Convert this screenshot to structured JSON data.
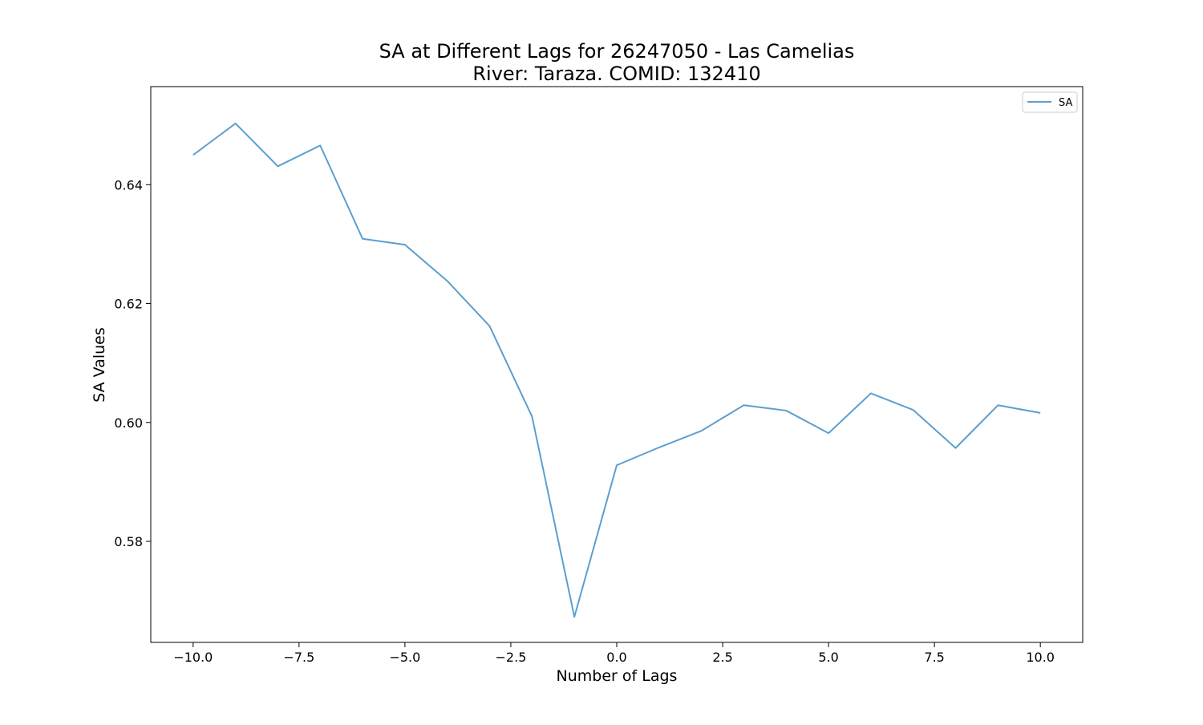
{
  "chart_data": {
    "type": "line",
    "title_lines": [
      "SA at Different Lags for 26247050 - Las Camelias",
      "River: Taraza. COMID: 132410"
    ],
    "xlabel": "Number of Lags",
    "ylabel": "SA Values",
    "xlim": [
      -11,
      11
    ],
    "ylim": [
      0.563,
      0.6565
    ],
    "x_ticks": [
      -10.0,
      -7.5,
      -5.0,
      -2.5,
      0.0,
      2.5,
      5.0,
      7.5,
      10.0
    ],
    "x_tick_labels": [
      "−10.0",
      "−7.5",
      "−5.0",
      "−2.5",
      "0.0",
      "2.5",
      "5.0",
      "7.5",
      "10.0"
    ],
    "y_ticks": [
      0.58,
      0.6,
      0.62,
      0.64
    ],
    "y_tick_labels": [
      "0.58",
      "0.60",
      "0.62",
      "0.64"
    ],
    "grid": false,
    "legend_position": "top-right",
    "line_color": "#5b9fcf",
    "series": [
      {
        "name": "SA",
        "x": [
          -10,
          -9,
          -8,
          -7,
          -6,
          -5,
          -4,
          -3,
          -2,
          -1,
          0,
          1,
          2,
          3,
          4,
          5,
          6,
          7,
          8,
          9,
          10
        ],
        "values": [
          0.645,
          0.6503,
          0.6431,
          0.6466,
          0.6309,
          0.6299,
          0.6238,
          0.6162,
          0.601,
          0.5673,
          0.5928,
          0.5958,
          0.5986,
          0.6029,
          0.602,
          0.5982,
          0.6049,
          0.6021,
          0.5957,
          0.6029,
          0.6016
        ]
      }
    ]
  }
}
